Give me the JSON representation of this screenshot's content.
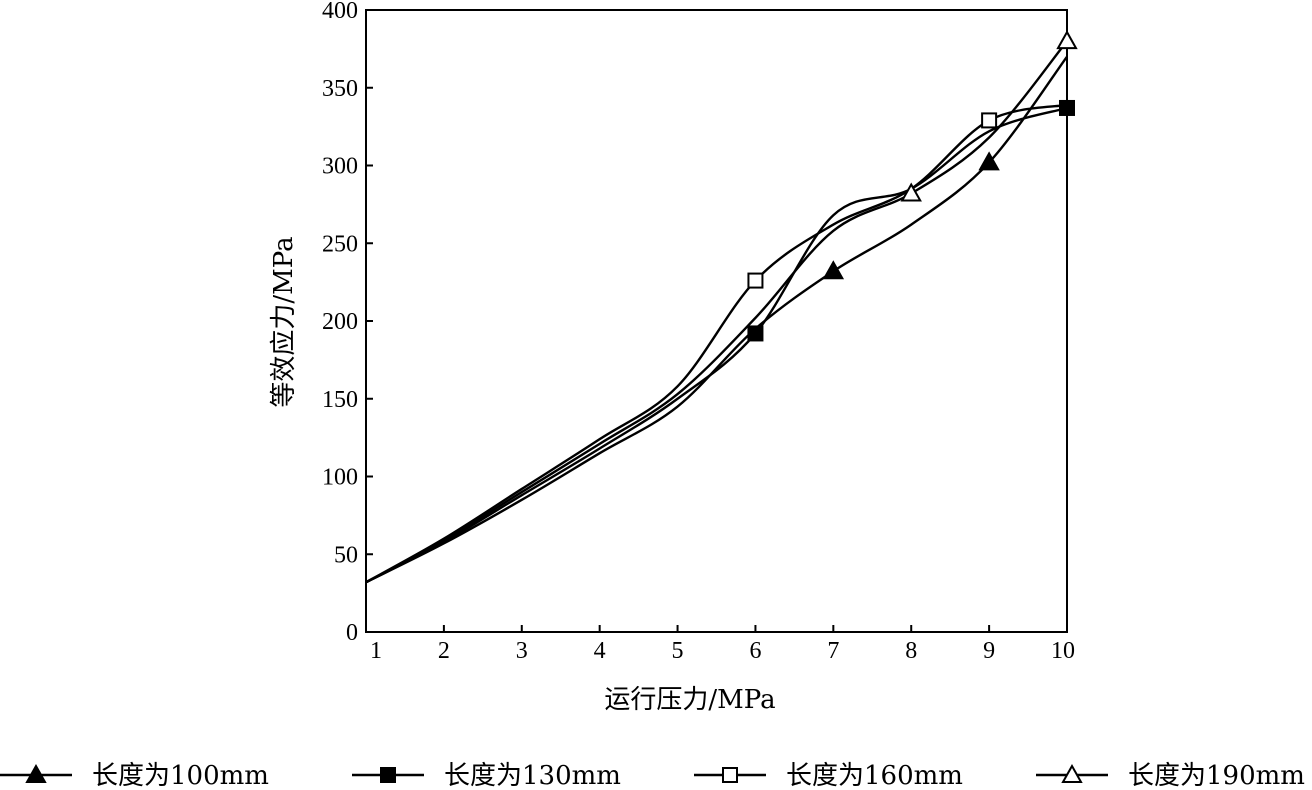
{
  "chart_data": {
    "type": "line",
    "xlabel": "运行压力/MPa",
    "ylabel": "等效应力/MPa",
    "xlim": [
      1,
      10
    ],
    "ylim": [
      0,
      400
    ],
    "x_ticks": [
      "1",
      "2",
      "3",
      "4",
      "5",
      "6",
      "7",
      "8",
      "9",
      "10"
    ],
    "y_ticks": [
      "0",
      "50",
      "100",
      "150",
      "200",
      "250",
      "300",
      "350",
      "400"
    ],
    "grid": false,
    "legend_position": "bottom",
    "series": [
      {
        "name": "长度为100mm",
        "marker": "filled-triangle",
        "x": [
          1,
          2,
          3,
          4,
          5,
          6,
          7,
          8,
          9,
          10
        ],
        "y": [
          32,
          57,
          85,
          115,
          145,
          195,
          232,
          262,
          302,
          370
        ],
        "marker_x": [
          7,
          9
        ],
        "marker_y": [
          232,
          302
        ]
      },
      {
        "name": "长度为130mm",
        "marker": "filled-square",
        "x": [
          1,
          2,
          3,
          4,
          5,
          6,
          7,
          8,
          9,
          10
        ],
        "y": [
          32,
          58,
          88,
          118,
          150,
          192,
          268,
          285,
          322,
          337
        ],
        "marker_x": [
          6,
          10
        ],
        "marker_y": [
          192,
          337
        ]
      },
      {
        "name": "长度为160mm",
        "marker": "open-square",
        "x": [
          1,
          2,
          3,
          4,
          5,
          6,
          7,
          8,
          9,
          10
        ],
        "y": [
          32,
          60,
          92,
          124,
          158,
          226,
          262,
          285,
          329,
          339
        ],
        "marker_x": [
          6,
          9
        ],
        "marker_y": [
          226,
          329
        ]
      },
      {
        "name": "长度为190mm",
        "marker": "open-triangle",
        "x": [
          1,
          2,
          3,
          4,
          5,
          6,
          7,
          8,
          9,
          10
        ],
        "y": [
          32,
          59,
          90,
          121,
          153,
          202,
          258,
          282,
          318,
          380
        ],
        "marker_x": [
          8,
          10
        ],
        "marker_y": [
          282,
          380
        ]
      }
    ]
  }
}
